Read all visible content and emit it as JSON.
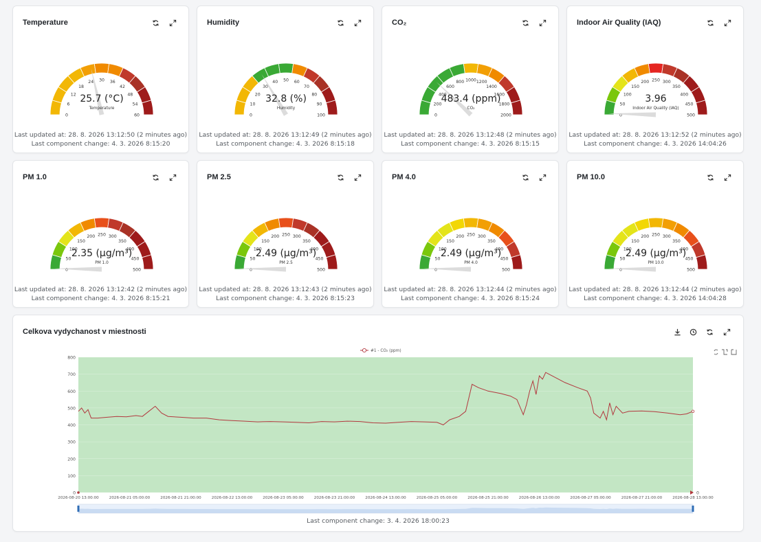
{
  "gauges": [
    {
      "title": "Temperature",
      "value_text": "25.7 (°C)",
      "name": "Temperature",
      "value": 25.7,
      "min": 0,
      "max": 60,
      "ticks": [
        "0",
        "6",
        "12",
        "18",
        "24",
        "30",
        "36",
        "42",
        "48",
        "54",
        "60"
      ],
      "colors": [
        "#f2b705",
        "#f2b705",
        "#f2b705",
        "#f2b705",
        "#f29f05",
        "#f08a00",
        "#f08a00",
        "#c0392b",
        "#a93226",
        "#9e1b1b",
        "#9e1b1b"
      ],
      "updated": "Last updated at: 28. 8. 2026 13:12:50 (2 minutes ago)",
      "changed": "Last component change: 4. 3. 2026 8:15:20"
    },
    {
      "title": "Humidity",
      "value_text": "32.8 (%)",
      "name": "Humidity",
      "value": 32.8,
      "min": 0,
      "max": 100,
      "ticks": [
        "0",
        "10",
        "20",
        "30",
        "40",
        "50",
        "60",
        "70",
        "80",
        "90",
        "100"
      ],
      "colors": [
        "#f2b705",
        "#f2b705",
        "#f2b705",
        "#3aa935",
        "#3aa935",
        "#3aa935",
        "#f08a00",
        "#c0392b",
        "#a93226",
        "#9e1b1b",
        "#9e1b1b"
      ],
      "updated": "Last updated at: 28. 8. 2026 13:12:49 (2 minutes ago)",
      "changed": "Last component change: 4. 3. 2026 8:15:18"
    },
    {
      "title": "CO₂",
      "value_text": "483.4 (ppm)",
      "name": "CO₂",
      "value": 483.4,
      "min": 0,
      "max": 2000,
      "ticks": [
        "0",
        "200",
        "400",
        "600",
        "800",
        "1000",
        "1200",
        "1400",
        "1600",
        "1800",
        "2000"
      ],
      "colors": [
        "#3aa935",
        "#3aa935",
        "#3aa935",
        "#3aa935",
        "#3aa935",
        "#f2b705",
        "#f29f05",
        "#f08a00",
        "#c0392b",
        "#9e1b1b",
        "#9e1b1b"
      ],
      "updated": "Last updated at: 28. 8. 2026 13:12:48 (2 minutes ago)",
      "changed": "Last component change: 4. 3. 2026 8:15:15"
    },
    {
      "title": "Indoor Air Quality (IAQ)",
      "value_text": "3.96",
      "name": "Indoor Air Quality (IAQ)",
      "value": 3.96,
      "min": 0,
      "max": 500,
      "ticks": [
        "0",
        "50",
        "100",
        "150",
        "200",
        "250",
        "300",
        "350",
        "400",
        "450",
        "500"
      ],
      "colors": [
        "#3aa935",
        "#7ac70c",
        "#e4e41a",
        "#f2b705",
        "#f08a00",
        "#e52521",
        "#c0392b",
        "#a93226",
        "#9e1b1b",
        "#9e1b1b",
        "#9e1b1b"
      ],
      "updated": "Last updated at: 28. 8. 2026 13:12:52 (2 minutes ago)",
      "changed": "Last component change: 4. 3. 2026 14:04:26"
    },
    {
      "title": "PM 1.0",
      "value_text": "2.35 (µg/m³)",
      "name": "PM 1.0",
      "value": 2.35,
      "min": 0,
      "max": 500,
      "ticks": [
        "0",
        "50",
        "100",
        "150",
        "200",
        "250",
        "300",
        "350",
        "400",
        "450",
        "500"
      ],
      "colors": [
        "#3aa935",
        "#7ac70c",
        "#e4e41a",
        "#f2b705",
        "#f08a00",
        "#e8501b",
        "#c0392b",
        "#a93226",
        "#9e1b1b",
        "#9e1b1b",
        "#9e1b1b"
      ],
      "updated": "Last updated at: 28. 8. 2026 13:12:42 (2 minutes ago)",
      "changed": "Last component change: 4. 3. 2026 8:15:21"
    },
    {
      "title": "PM 2.5",
      "value_text": "2.49 (µg/m³)",
      "name": "PM 2.5",
      "value": 2.49,
      "min": 0,
      "max": 500,
      "ticks": [
        "0",
        "50",
        "100",
        "150",
        "200",
        "250",
        "300",
        "350",
        "400",
        "450",
        "500"
      ],
      "colors": [
        "#3aa935",
        "#7ac70c",
        "#e4e41a",
        "#f2b705",
        "#f08a00",
        "#e8501b",
        "#c0392b",
        "#a93226",
        "#9e1b1b",
        "#9e1b1b",
        "#9e1b1b"
      ],
      "updated": "Last updated at: 28. 8. 2026 13:12:43 (2 minutes ago)",
      "changed": "Last component change: 4. 3. 2026 8:15:23"
    },
    {
      "title": "PM 4.0",
      "value_text": "2.49 (µg/m³)",
      "name": "PM 4.0",
      "value": 2.49,
      "min": 0,
      "max": 500,
      "ticks": [
        "0",
        "50",
        "100",
        "150",
        "200",
        "250",
        "300",
        "350",
        "400",
        "450",
        "500"
      ],
      "colors": [
        "#3aa935",
        "#7ac70c",
        "#e4e41a",
        "#e4e41a",
        "#f2d705",
        "#f2b705",
        "#f29f05",
        "#f08a00",
        "#e8501b",
        "#c0392b",
        "#9e1b1b"
      ],
      "updated": "Last updated at: 28. 8. 2026 13:12:44 (2 minutes ago)",
      "changed": "Last component change: 4. 3. 2026 8:15:24"
    },
    {
      "title": "PM 10.0",
      "value_text": "2.49 (µg/m³)",
      "name": "PM 10.0",
      "value": 2.49,
      "min": 0,
      "max": 500,
      "ticks": [
        "0",
        "50",
        "100",
        "150",
        "200",
        "250",
        "300",
        "350",
        "400",
        "450",
        "500"
      ],
      "colors": [
        "#3aa935",
        "#7ac70c",
        "#e4e41a",
        "#e4e41a",
        "#f2d705",
        "#f2b705",
        "#f29f05",
        "#f08a00",
        "#e8501b",
        "#c0392b",
        "#9e1b1b"
      ],
      "updated": "Last updated at: 28. 8. 2026 13:12:44 (2 minutes ago)",
      "changed": "Last component change: 4. 3. 2026 14:04:28"
    }
  ],
  "chart_card": {
    "title": "Celkova vydychanost v miestnosti",
    "footer": "Last component change: 3. 4. 2026 18:00:23"
  },
  "colors": {
    "plot_bg": "#c3e6c4",
    "line": "#b2383e",
    "nav_bg": "#e8f0fb",
    "handle": "#2f6db5"
  },
  "chart_data": {
    "type": "line",
    "series": [
      {
        "name": "#1 - CO₂ (ppm)"
      }
    ],
    "ylim": [
      0,
      800
    ],
    "yticks": [
      0,
      100,
      200,
      300,
      400,
      500,
      600,
      700,
      800
    ],
    "right_axis_label": "0",
    "xtick_labels": [
      "2026-08-20 13:00:00",
      "2026-08-21 05:00:00",
      "2026-08-21 21:00:00",
      "2026-08-22 13:00:00",
      "2026-08-23 05:00:00",
      "2026-08-23 21:00:00",
      "2026-08-24 13:00:00",
      "2026-08-25 05:00:00",
      "2026-08-25 21:00:00",
      "2026-08-26 13:00:00",
      "2026-08-27 05:00:00",
      "2026-08-27 21:00:00",
      "2026-08-28 13:00:00"
    ],
    "x_start": "2026-08-20 13:00:00",
    "x_end": "2026-08-28 13:00:00",
    "points": [
      [
        "2026-08-20 13:00",
        480
      ],
      [
        "2026-08-20 14:00",
        500
      ],
      [
        "2026-08-20 15:00",
        470
      ],
      [
        "2026-08-20 16:00",
        490
      ],
      [
        "2026-08-20 17:00",
        440
      ],
      [
        "2026-08-20 19:00",
        440
      ],
      [
        "2026-08-20 22:00",
        445
      ],
      [
        "2026-08-21 01:00",
        450
      ],
      [
        "2026-08-21 04:00",
        448
      ],
      [
        "2026-08-21 07:00",
        455
      ],
      [
        "2026-08-21 09:00",
        450
      ],
      [
        "2026-08-21 11:00",
        480
      ],
      [
        "2026-08-21 13:00",
        510
      ],
      [
        "2026-08-21 15:00",
        470
      ],
      [
        "2026-08-21 17:00",
        450
      ],
      [
        "2026-08-21 21:00",
        445
      ],
      [
        "2026-08-22 01:00",
        440
      ],
      [
        "2026-08-22 05:00",
        440
      ],
      [
        "2026-08-22 09:00",
        430
      ],
      [
        "2026-08-22 13:00",
        425
      ],
      [
        "2026-08-22 17:00",
        422
      ],
      [
        "2026-08-22 21:00",
        418
      ],
      [
        "2026-08-23 01:00",
        420
      ],
      [
        "2026-08-23 05:00",
        418
      ],
      [
        "2026-08-23 09:00",
        415
      ],
      [
        "2026-08-23 13:00",
        412
      ],
      [
        "2026-08-23 17:00",
        420
      ],
      [
        "2026-08-23 21:00",
        418
      ],
      [
        "2026-08-24 01:00",
        422
      ],
      [
        "2026-08-24 05:00",
        420
      ],
      [
        "2026-08-24 09:00",
        412
      ],
      [
        "2026-08-24 13:00",
        410
      ],
      [
        "2026-08-24 17:00",
        415
      ],
      [
        "2026-08-24 21:00",
        420
      ],
      [
        "2026-08-25 01:00",
        418
      ],
      [
        "2026-08-25 05:00",
        415
      ],
      [
        "2026-08-25 07:00",
        400
      ],
      [
        "2026-08-25 09:00",
        430
      ],
      [
        "2026-08-25 12:00",
        450
      ],
      [
        "2026-08-25 14:00",
        480
      ],
      [
        "2026-08-25 16:00",
        640
      ],
      [
        "2026-08-25 18:00",
        620
      ],
      [
        "2026-08-25 21:00",
        600
      ],
      [
        "2026-08-26 01:00",
        585
      ],
      [
        "2026-08-26 04:00",
        570
      ],
      [
        "2026-08-26 06:00",
        550
      ],
      [
        "2026-08-26 08:00",
        460
      ],
      [
        "2026-08-26 09:00",
        520
      ],
      [
        "2026-08-26 10:00",
        600
      ],
      [
        "2026-08-26 11:00",
        660
      ],
      [
        "2026-08-26 12:00",
        580
      ],
      [
        "2026-08-26 13:00",
        690
      ],
      [
        "2026-08-26 14:00",
        670
      ],
      [
        "2026-08-26 15:00",
        710
      ],
      [
        "2026-08-26 17:00",
        690
      ],
      [
        "2026-08-26 21:00",
        650
      ],
      [
        "2026-08-27 01:00",
        620
      ],
      [
        "2026-08-27 04:00",
        600
      ],
      [
        "2026-08-27 05:00",
        560
      ],
      [
        "2026-08-27 06:00",
        470
      ],
      [
        "2026-08-27 08:00",
        440
      ],
      [
        "2026-08-27 09:00",
        480
      ],
      [
        "2026-08-27 10:00",
        430
      ],
      [
        "2026-08-27 11:00",
        530
      ],
      [
        "2026-08-27 12:00",
        460
      ],
      [
        "2026-08-27 13:00",
        510
      ],
      [
        "2026-08-27 15:00",
        470
      ],
      [
        "2026-08-27 17:00",
        480
      ],
      [
        "2026-08-27 21:00",
        482
      ],
      [
        "2026-08-28 01:00",
        478
      ],
      [
        "2026-08-28 05:00",
        470
      ],
      [
        "2026-08-28 09:00",
        460
      ],
      [
        "2026-08-28 11:00",
        465
      ],
      [
        "2026-08-28 13:00",
        480
      ]
    ]
  }
}
